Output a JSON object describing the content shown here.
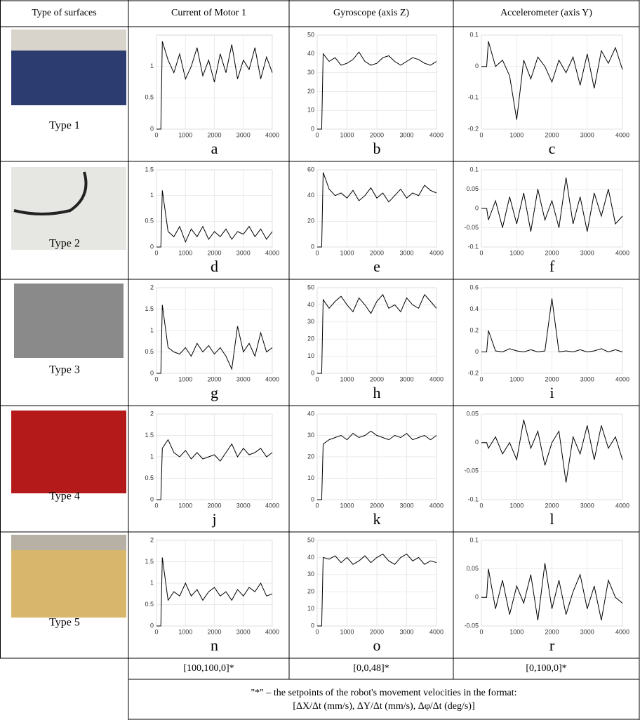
{
  "table": {
    "header": [
      "Type of surfaces",
      "Current of Motor 1",
      "Gyroscope (axis Z)",
      "Accelerometer (axis Y)"
    ],
    "rows": [
      {
        "label": "Type 1"
      },
      {
        "label": "Type 2"
      },
      {
        "label": "Type 3"
      },
      {
        "label": "Type 4"
      },
      {
        "label": "Type 5"
      }
    ],
    "setpoints": [
      "[100,100,0]*",
      "[0,0,48]*",
      "[0,100,0]*"
    ],
    "note": [
      "\"*\" – the setpoints of the robot's movement velocities in the format:",
      "[ΔX/Δt (mm/s), ΔY/Δt (mm/s), Δφ/Δt (deg/s)]"
    ]
  },
  "chart_data": [
    {
      "type": "line",
      "caption": "a",
      "color": "#000000",
      "grid": true,
      "x": [
        0,
        150,
        200,
        400,
        600,
        800,
        1000,
        1200,
        1400,
        1600,
        1800,
        2000,
        2200,
        2400,
        2600,
        2800,
        3000,
        3200,
        3400,
        3600,
        3800,
        4000
      ],
      "values": [
        0,
        0,
        1.4,
        1.1,
        0.9,
        1.2,
        0.8,
        1.0,
        1.3,
        0.85,
        1.1,
        0.75,
        1.2,
        0.9,
        1.35,
        0.8,
        1.1,
        0.95,
        1.3,
        0.8,
        1.15,
        0.9
      ],
      "xlim": [
        0,
        4000
      ],
      "xticks": [
        0,
        1000,
        2000,
        3000,
        4000
      ],
      "ylim": [
        0,
        1.5
      ],
      "yticks": [
        0,
        0.5,
        1
      ]
    },
    {
      "type": "line",
      "caption": "b",
      "color": "#000000",
      "grid": true,
      "x": [
        0,
        150,
        200,
        400,
        600,
        800,
        1000,
        1200,
        1400,
        1600,
        1800,
        2000,
        2200,
        2400,
        2600,
        2800,
        3000,
        3200,
        3400,
        3600,
        3800,
        4000
      ],
      "values": [
        0,
        0,
        40,
        36,
        38,
        34,
        35,
        37,
        41,
        36,
        34,
        35,
        38,
        39,
        36,
        34,
        36,
        38,
        37,
        35,
        34,
        36
      ],
      "xlim": [
        0,
        4000
      ],
      "xticks": [
        0,
        1000,
        2000,
        3000,
        4000
      ],
      "ylim": [
        0,
        50
      ],
      "yticks": [
        0,
        10,
        20,
        30,
        40,
        50
      ]
    },
    {
      "type": "line",
      "caption": "c",
      "color": "#000000",
      "grid": true,
      "x": [
        0,
        150,
        200,
        400,
        600,
        800,
        1000,
        1200,
        1400,
        1600,
        1800,
        2000,
        2200,
        2400,
        2600,
        2800,
        3000,
        3200,
        3400,
        3600,
        3800,
        4000
      ],
      "values": [
        0,
        0,
        0.08,
        0,
        0.02,
        -0.03,
        -0.17,
        0.02,
        -0.04,
        0.03,
        0,
        -0.05,
        0.02,
        -0.02,
        0.03,
        -0.06,
        0.04,
        -0.07,
        0.05,
        0.01,
        0.06,
        -0.01
      ],
      "xlim": [
        0,
        4000
      ],
      "xticks": [
        0,
        1000,
        2000,
        3000,
        4000
      ],
      "ylim": [
        -0.2,
        0.1
      ],
      "yticks": [
        -0.2,
        -0.1,
        0,
        0.1
      ]
    },
    {
      "type": "line",
      "caption": "d",
      "color": "#000000",
      "grid": true,
      "x": [
        0,
        150,
        200,
        400,
        600,
        800,
        1000,
        1200,
        1400,
        1600,
        1800,
        2000,
        2200,
        2400,
        2600,
        2800,
        3000,
        3200,
        3400,
        3600,
        3800,
        4000
      ],
      "values": [
        0,
        0,
        1.1,
        0.3,
        0.2,
        0.4,
        0.1,
        0.35,
        0.2,
        0.4,
        0.15,
        0.3,
        0.2,
        0.35,
        0.15,
        0.3,
        0.25,
        0.4,
        0.2,
        0.35,
        0.15,
        0.3
      ],
      "xlim": [
        0,
        4000
      ],
      "xticks": [
        0,
        1000,
        2000,
        3000,
        4000
      ],
      "ylim": [
        0,
        1.5
      ],
      "yticks": [
        0,
        0.5,
        1,
        1.5
      ]
    },
    {
      "type": "line",
      "caption": "e",
      "color": "#000000",
      "grid": true,
      "x": [
        0,
        150,
        200,
        400,
        600,
        800,
        1000,
        1200,
        1400,
        1600,
        1800,
        2000,
        2200,
        2400,
        2600,
        2800,
        3000,
        3200,
        3400,
        3600,
        3800,
        4000
      ],
      "values": [
        0,
        0,
        58,
        45,
        40,
        42,
        38,
        44,
        36,
        40,
        46,
        38,
        42,
        35,
        40,
        45,
        38,
        42,
        40,
        48,
        44,
        42
      ],
      "xlim": [
        0,
        4000
      ],
      "xticks": [
        0,
        1000,
        2000,
        3000,
        4000
      ],
      "ylim": [
        0,
        60
      ],
      "yticks": [
        0,
        20,
        40,
        60
      ]
    },
    {
      "type": "line",
      "caption": "f",
      "color": "#000000",
      "grid": true,
      "x": [
        0,
        150,
        200,
        400,
        600,
        800,
        1000,
        1200,
        1400,
        1600,
        1800,
        2000,
        2200,
        2400,
        2600,
        2800,
        3000,
        3200,
        3400,
        3600,
        3800,
        4000
      ],
      "values": [
        0,
        0,
        -0.03,
        0.02,
        -0.05,
        0.03,
        -0.04,
        0.04,
        -0.06,
        0.05,
        -0.03,
        0.02,
        -0.05,
        0.08,
        -0.04,
        0.03,
        -0.06,
        0.04,
        -0.02,
        0.05,
        -0.04,
        -0.02
      ],
      "xlim": [
        0,
        4000
      ],
      "xticks": [
        0,
        1000,
        2000,
        3000,
        4000
      ],
      "ylim": [
        -0.1,
        0.1
      ],
      "yticks": [
        -0.1,
        -0.05,
        0,
        0.05,
        0.1
      ]
    },
    {
      "type": "line",
      "caption": "g",
      "color": "#000000",
      "grid": true,
      "x": [
        0,
        150,
        200,
        400,
        600,
        800,
        1000,
        1200,
        1400,
        1600,
        1800,
        2000,
        2200,
        2400,
        2600,
        2800,
        3000,
        3200,
        3400,
        3600,
        3800,
        4000
      ],
      "values": [
        0,
        0,
        1.6,
        0.6,
        0.5,
        0.45,
        0.6,
        0.4,
        0.7,
        0.5,
        0.65,
        0.45,
        0.6,
        0.4,
        0.1,
        1.1,
        0.5,
        0.7,
        0.4,
        0.95,
        0.5,
        0.6
      ],
      "xlim": [
        0,
        4000
      ],
      "xticks": [
        0,
        1000,
        2000,
        3000,
        4000
      ],
      "ylim": [
        0,
        2
      ],
      "yticks": [
        0,
        0.5,
        1,
        1.5,
        2
      ]
    },
    {
      "type": "line",
      "caption": "h",
      "color": "#000000",
      "grid": true,
      "x": [
        0,
        150,
        200,
        400,
        600,
        800,
        1000,
        1200,
        1400,
        1600,
        1800,
        2000,
        2200,
        2400,
        2600,
        2800,
        3000,
        3200,
        3400,
        3600,
        3800,
        4000
      ],
      "values": [
        0,
        0,
        43,
        38,
        42,
        45,
        40,
        36,
        44,
        40,
        35,
        42,
        46,
        38,
        40,
        36,
        44,
        40,
        38,
        46,
        42,
        38
      ],
      "xlim": [
        0,
        4000
      ],
      "xticks": [
        0,
        1000,
        2000,
        3000,
        4000
      ],
      "ylim": [
        0,
        50
      ],
      "yticks": [
        0,
        10,
        20,
        30,
        40,
        50
      ]
    },
    {
      "type": "line",
      "caption": "i",
      "color": "#000000",
      "grid": true,
      "x": [
        0,
        150,
        200,
        400,
        600,
        800,
        1000,
        1200,
        1400,
        1600,
        1800,
        2000,
        2200,
        2400,
        2600,
        2800,
        3000,
        3200,
        3400,
        3600,
        3800,
        4000
      ],
      "values": [
        0,
        0,
        0.2,
        0.01,
        0,
        0.03,
        0.01,
        0,
        0.02,
        0,
        0.01,
        0.5,
        0,
        0.01,
        0,
        0.02,
        0,
        0.01,
        0.03,
        0,
        0.02,
        0
      ],
      "xlim": [
        0,
        4000
      ],
      "xticks": [
        0,
        1000,
        2000,
        3000,
        4000
      ],
      "ylim": [
        -0.2,
        0.6
      ],
      "yticks": [
        -0.2,
        0,
        0.2,
        0.4,
        0.6
      ]
    },
    {
      "type": "line",
      "caption": "j",
      "color": "#000000",
      "grid": true,
      "x": [
        0,
        150,
        200,
        400,
        600,
        800,
        1000,
        1200,
        1400,
        1600,
        1800,
        2000,
        2200,
        2400,
        2600,
        2800,
        3000,
        3200,
        3400,
        3600,
        3800,
        4000
      ],
      "values": [
        0,
        0,
        1.2,
        1.4,
        1.1,
        1.0,
        1.15,
        0.95,
        1.1,
        0.95,
        1.0,
        1.05,
        0.9,
        1.1,
        1.3,
        1.0,
        1.2,
        1.05,
        1.1,
        1.2,
        1.0,
        1.1
      ],
      "xlim": [
        0,
        4000
      ],
      "xticks": [
        0,
        1000,
        2000,
        3000,
        4000
      ],
      "ylim": [
        0,
        2
      ],
      "yticks": [
        0,
        0.5,
        1,
        1.5,
        2
      ]
    },
    {
      "type": "line",
      "caption": "k",
      "color": "#000000",
      "grid": true,
      "x": [
        0,
        150,
        200,
        400,
        600,
        800,
        1000,
        1200,
        1400,
        1600,
        1800,
        2000,
        2200,
        2400,
        2600,
        2800,
        3000,
        3200,
        3400,
        3600,
        3800,
        4000
      ],
      "values": [
        0,
        0,
        26,
        28,
        29,
        30,
        28,
        31,
        29,
        30,
        32,
        30,
        29,
        28,
        30,
        29,
        31,
        28,
        29,
        30,
        28,
        30
      ],
      "xlim": [
        0,
        4000
      ],
      "xticks": [
        0,
        1000,
        2000,
        3000,
        4000
      ],
      "ylim": [
        0,
        40
      ],
      "yticks": [
        0,
        10,
        20,
        30,
        40
      ]
    },
    {
      "type": "line",
      "caption": "l",
      "color": "#000000",
      "grid": true,
      "x": [
        0,
        150,
        200,
        400,
        600,
        800,
        1000,
        1200,
        1400,
        1600,
        1800,
        2000,
        2200,
        2400,
        2600,
        2800,
        3000,
        3200,
        3400,
        3600,
        3800,
        4000
      ],
      "values": [
        0,
        0,
        -0.01,
        0.01,
        -0.02,
        0,
        -0.03,
        0.04,
        -0.01,
        0.02,
        -0.04,
        0,
        0.02,
        -0.07,
        0.01,
        -0.02,
        0.03,
        -0.03,
        0.03,
        -0.01,
        0.01,
        -0.03
      ],
      "xlim": [
        0,
        4000
      ],
      "xticks": [
        0,
        1000,
        2000,
        3000,
        4000
      ],
      "ylim": [
        -0.1,
        0.05
      ],
      "yticks": [
        -0.1,
        -0.05,
        0,
        0.05
      ]
    },
    {
      "type": "line",
      "caption": "n",
      "color": "#000000",
      "grid": true,
      "x": [
        0,
        150,
        200,
        400,
        600,
        800,
        1000,
        1200,
        1400,
        1600,
        1800,
        2000,
        2200,
        2400,
        2600,
        2800,
        3000,
        3200,
        3400,
        3600,
        3800,
        4000
      ],
      "values": [
        0,
        0,
        1.6,
        0.6,
        0.8,
        0.7,
        1.0,
        0.7,
        0.85,
        0.6,
        0.8,
        0.9,
        0.7,
        0.8,
        0.6,
        0.85,
        0.7,
        0.9,
        0.8,
        1.0,
        0.7,
        0.75
      ],
      "xlim": [
        0,
        4000
      ],
      "xticks": [
        0,
        1000,
        2000,
        3000,
        4000
      ],
      "ylim": [
        0,
        2
      ],
      "yticks": [
        0,
        0.5,
        1,
        1.5,
        2
      ]
    },
    {
      "type": "line",
      "caption": "o",
      "color": "#000000",
      "grid": true,
      "x": [
        0,
        150,
        200,
        400,
        600,
        800,
        1000,
        1200,
        1400,
        1600,
        1800,
        2000,
        2200,
        2400,
        2600,
        2800,
        3000,
        3200,
        3400,
        3600,
        3800,
        4000
      ],
      "values": [
        0,
        0,
        40,
        39,
        41,
        37,
        40,
        36,
        38,
        41,
        37,
        40,
        42,
        38,
        36,
        40,
        42,
        38,
        40,
        36,
        38,
        37
      ],
      "xlim": [
        0,
        4000
      ],
      "xticks": [
        0,
        1000,
        2000,
        3000,
        4000
      ],
      "ylim": [
        0,
        50
      ],
      "yticks": [
        0,
        10,
        20,
        30,
        40,
        50
      ]
    },
    {
      "type": "line",
      "caption": "r",
      "color": "#000000",
      "grid": true,
      "x": [
        0,
        150,
        200,
        400,
        600,
        800,
        1000,
        1200,
        1400,
        1600,
        1800,
        2000,
        2200,
        2400,
        2600,
        2800,
        3000,
        3200,
        3400,
        3600,
        3800,
        4000
      ],
      "values": [
        0,
        0,
        0.05,
        -0.02,
        0.03,
        -0.03,
        0.02,
        -0.01,
        0.04,
        -0.04,
        0.06,
        -0.02,
        0.03,
        -0.03,
        0.01,
        0.04,
        -0.02,
        0.02,
        -0.04,
        0.03,
        0,
        -0.01
      ],
      "xlim": [
        0,
        4000
      ],
      "xticks": [
        0,
        1000,
        2000,
        3000,
        4000
      ],
      "ylim": [
        -0.05,
        0.1
      ],
      "yticks": [
        -0.05,
        0,
        0.05,
        0.1
      ]
    }
  ]
}
